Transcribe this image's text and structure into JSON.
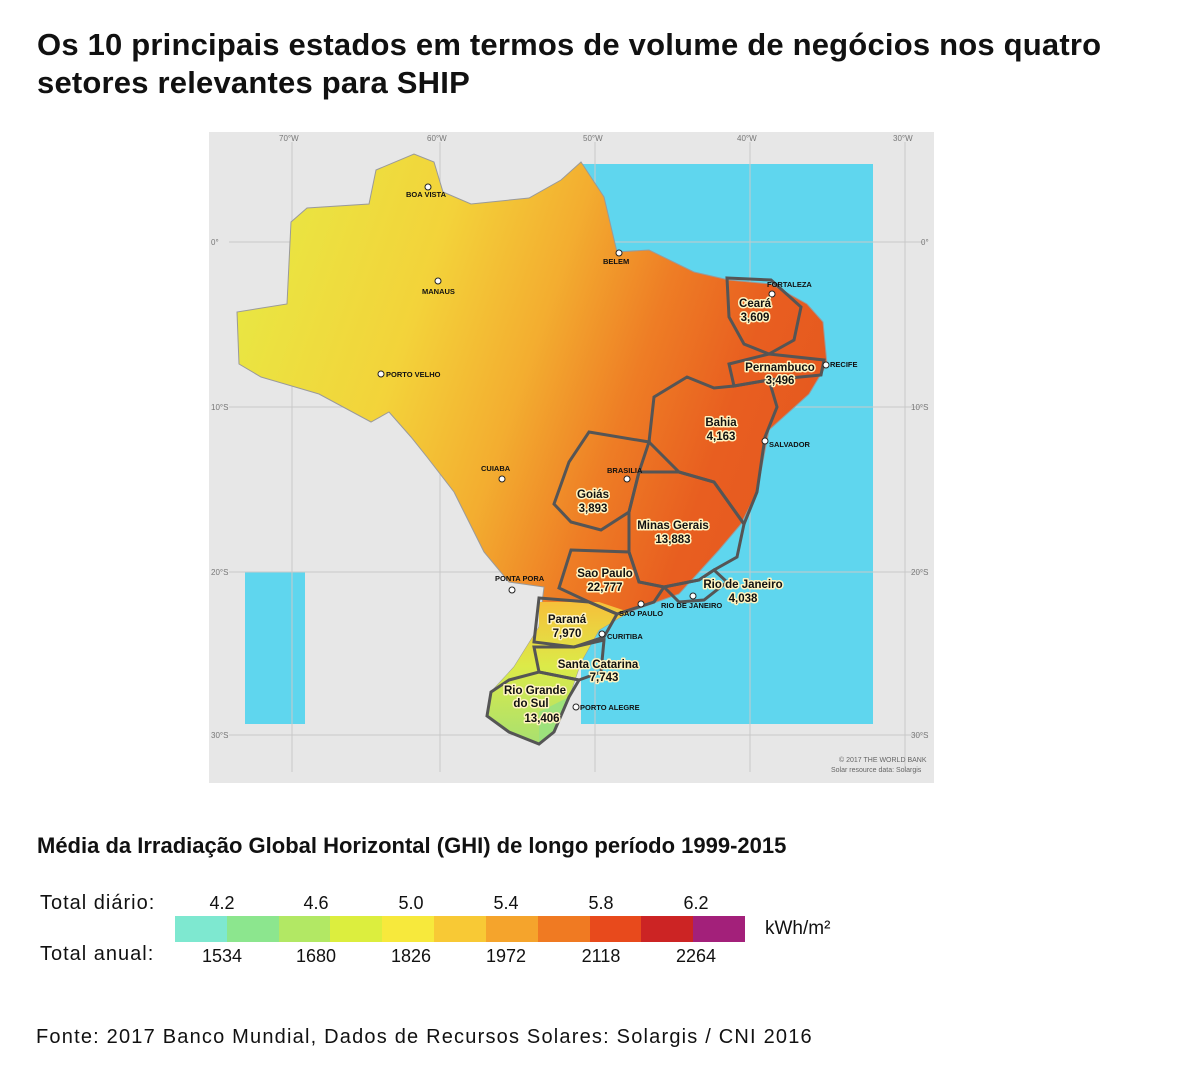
{
  "title": "Os 10 principais estados em termos de volume de negócios nos quatro setores relevantes para SHIP",
  "map": {
    "longitudes": [
      "70°W",
      "60°W",
      "50°W",
      "40°W",
      "30°W"
    ],
    "latitudes": [
      "0°",
      "10°S",
      "20°S",
      "30°S"
    ],
    "cities": [
      "BOA VISTA",
      "BELEM",
      "MANAUS",
      "FORTALEZA",
      "RECIFE",
      "PORTO VELHO",
      "SALVADOR",
      "BRASILIA",
      "CUIABA",
      "PONTA PORA",
      "RIO DE JANEIRO",
      "SAO PAULO",
      "CURITIBA",
      "PORTO ALEGRE"
    ],
    "states": [
      {
        "name": "Ceará",
        "value": "3,609"
      },
      {
        "name": "Pernambuco",
        "value": "3,496"
      },
      {
        "name": "Bahia",
        "value": "4,163"
      },
      {
        "name": "Goiás",
        "value": "3,893"
      },
      {
        "name": "Minas Gerais",
        "value": "13,883"
      },
      {
        "name": "Sao Paulo",
        "value": "22,777"
      },
      {
        "name": "Rio de Janeiro",
        "value": "4,038"
      },
      {
        "name": "Paraná",
        "value": "7,970"
      },
      {
        "name": "Santa Catarina",
        "value": "7,743"
      },
      {
        "name": "Rio Grande do Sul",
        "value": "13,406"
      }
    ],
    "credit_1": "© 2017 THE WORLD BANK",
    "credit_2": "Solar resource data: Solargis"
  },
  "legend": {
    "title": "Média da Irradiação Global Horizontal (GHI) de longo período 1999-2015",
    "daily_label": "Total diário:",
    "annual_label": "Total anual:",
    "daily_ticks": [
      "4.2",
      "4.6",
      "5.0",
      "5.4",
      "5.8",
      "6.2"
    ],
    "annual_ticks": [
      "1534",
      "1680",
      "1826",
      "1972",
      "2118",
      "2264"
    ],
    "unit": "kWh/m²",
    "colors": [
      "#7ee8d0",
      "#8ce68e",
      "#b2e864",
      "#dcee3e",
      "#f7e93c",
      "#f8c935",
      "#f5a42c",
      "#f07a22",
      "#e84a1c",
      "#cc2424",
      "#a3207a"
    ]
  },
  "source": "Fonte: 2017 Banco Mundial, Dados de Recursos Solares: Solargis / CNI 2016"
}
